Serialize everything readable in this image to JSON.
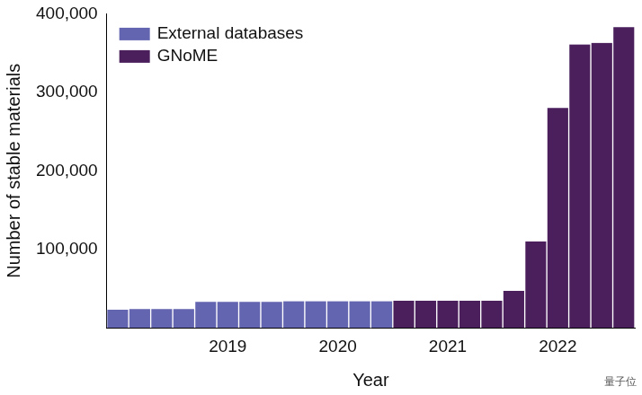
{
  "chart_data": {
    "type": "bar",
    "x_label": "Year",
    "y_label": "Number of stable materials",
    "categories": [
      null,
      null,
      null,
      null,
      null,
      "2019",
      null,
      null,
      null,
      null,
      "2020",
      null,
      null,
      null,
      null,
      "2021",
      null,
      null,
      null,
      null,
      "2022",
      null,
      null,
      null
    ],
    "series": [
      {
        "name": "External databases",
        "color": "#6465b0",
        "values": [
          23000,
          24000,
          24000,
          24000,
          33000,
          33000,
          33000,
          33000,
          34000,
          34000,
          34000,
          34000,
          34000,
          null,
          null,
          null,
          null,
          null,
          null,
          null,
          null,
          null,
          null,
          null
        ]
      },
      {
        "name": "GNoME",
        "color": "#4a1f5c",
        "values": [
          null,
          null,
          null,
          null,
          null,
          null,
          null,
          null,
          null,
          null,
          null,
          null,
          null,
          34500,
          34500,
          34500,
          34500,
          34500,
          47000,
          110000,
          280000,
          361000,
          363000,
          383000
        ]
      }
    ],
    "ylim": [
      0,
      400000
    ],
    "yticks": [
      {
        "value": 100000,
        "label": "100,000"
      },
      {
        "value": 200000,
        "label": "200,000"
      },
      {
        "value": 300000,
        "label": "300,000"
      },
      {
        "value": 400000,
        "label": "400,000"
      }
    ],
    "grid": false,
    "legend": "upper left",
    "annotations": [
      "量子位"
    ]
  }
}
